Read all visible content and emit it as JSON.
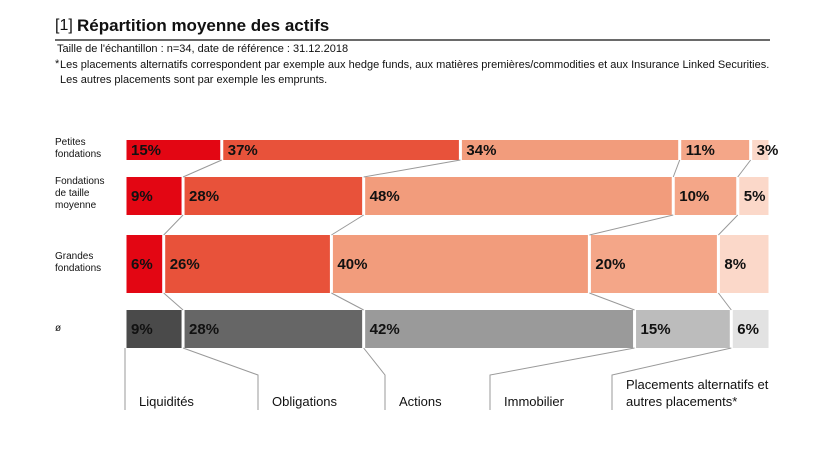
{
  "chart_data": {
    "type": "stacked-bar-horizontal",
    "figure_label": "[1]",
    "title": "Répartition moyenne des actifs",
    "subtitle": "Taille de l'échantillon : n=34, date de référence : 31.12.2018",
    "note_marker": "*",
    "note": "Les placements alternatifs correspondent par exemple aux hedge funds, aux matières premières/commodities et aux Insurance Linked Securities. Les autres placements sont par exemple les emprunts.",
    "categories": [
      "Petites\nfondations",
      "Fondations\nde taille\nmoyenne",
      "Grandes\nfondations",
      "ø"
    ],
    "xlim": [
      0,
      100
    ],
    "series": [
      {
        "name": "Liquidités",
        "colors": [
          "#e30613",
          "#e30613",
          "#e30613",
          "#4a4a4a"
        ],
        "values": [
          15,
          9,
          6,
          9
        ],
        "value_labels": [
          "15%",
          "9%",
          "6%",
          "9%"
        ]
      },
      {
        "name": "Obligations",
        "colors": [
          "#e8523a",
          "#e8523a",
          "#e8523a",
          "#666666"
        ],
        "values": [
          37,
          28,
          26,
          28
        ],
        "value_labels": [
          "37%",
          "28%",
          "26%",
          "28%"
        ]
      },
      {
        "name": "Actions",
        "colors": [
          "#f29c7c",
          "#f29c7c",
          "#f29c7c",
          "#9a9a9a"
        ],
        "values": [
          34,
          48,
          40,
          42
        ],
        "value_labels": [
          "34%",
          "48%",
          "40%",
          "42%"
        ]
      },
      {
        "name": "Immobilier",
        "colors": [
          "#f4a688",
          "#f4a688",
          "#f4a688",
          "#bcbcbc"
        ],
        "values": [
          11,
          10,
          20,
          15
        ],
        "value_labels": [
          "11%",
          "10%",
          "20%",
          "15%"
        ]
      },
      {
        "name": "Placements alternatifs et autres placements*",
        "colors": [
          "#fbd8c9",
          "#fbd8c9",
          "#fbd8c9",
          "#e2e2e2"
        ],
        "values": [
          3,
          5,
          8,
          6
        ],
        "value_labels": [
          "3%",
          "5%",
          "8%",
          "6%"
        ]
      }
    ]
  }
}
